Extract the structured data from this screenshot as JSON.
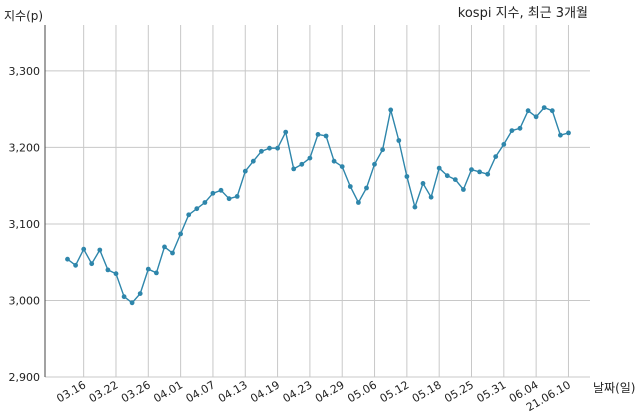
{
  "chart_data": {
    "type": "line",
    "title": "kospi 지수, 최근 3개월",
    "ylabel": "지수(p)",
    "xlabel": "날짜(일)",
    "ylim": [
      2900,
      3360
    ],
    "yticks": [
      2900,
      3000,
      3100,
      3200,
      3300
    ],
    "ytick_labels": [
      "2,900",
      "3,000",
      "3,100",
      "3,200",
      "3,300"
    ],
    "xtick_labels": [
      "03.16",
      "03.22",
      "03.26",
      "04.01",
      "04.07",
      "04.13",
      "04.19",
      "04.23",
      "04.29",
      "05.06",
      "05.12",
      "05.18",
      "05.25",
      "05.31",
      "06.04",
      "21.06.10"
    ],
    "xtick_index": [
      2,
      6,
      10,
      14,
      18,
      22,
      26,
      30,
      34,
      38,
      42,
      46,
      50,
      54,
      58,
      62
    ],
    "grid": true,
    "series": [
      {
        "values": [
          3054,
          3046,
          3067,
          3048,
          3066,
          3040,
          3035,
          3005,
          2997,
          3009,
          3041,
          3036,
          3070,
          3062,
          3087,
          3112,
          3120,
          3128,
          3140,
          3144,
          3133,
          3136,
          3169,
          3182,
          3195,
          3199,
          3199,
          3220,
          3172,
          3178,
          3186,
          3217,
          3215,
          3182,
          3175,
          3149,
          3128,
          3147,
          3178,
          3197,
          3249,
          3209,
          3162,
          3122,
          3153,
          3135,
          3173,
          3163,
          3158,
          3145,
          3171,
          3168,
          3165,
          3188,
          3204,
          3222,
          3225,
          3248,
          3240,
          3252,
          3248,
          3216,
          3219
        ]
      }
    ]
  }
}
